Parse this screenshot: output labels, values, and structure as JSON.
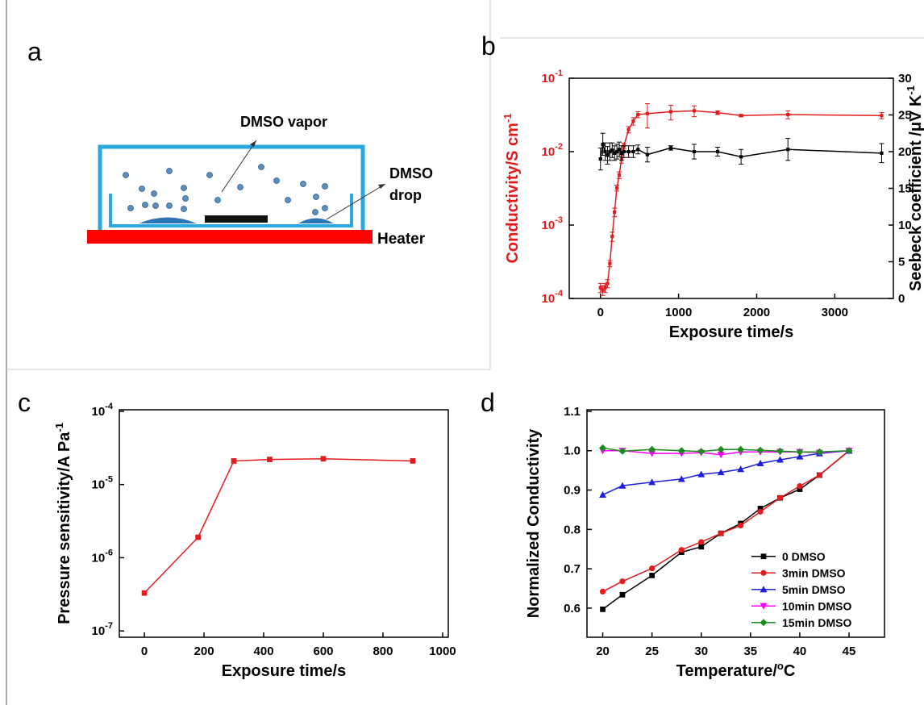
{
  "diagram": {
    "label": "a",
    "vapor": "DMSO vapor",
    "drop": [
      "DMSO",
      "drop"
    ],
    "heater": "Heater"
  },
  "chart_data": [
    {
      "type": "line",
      "label": "b",
      "xlabel": "Exposure time/s",
      "ylabel": {
        "text": "Conductivity/S cm",
        "sup": "-1"
      },
      "y2label": {
        "text": "Seebeck coefficient /μV K",
        "sup": "-1"
      },
      "y_color": "#e41a1c",
      "ylog": true,
      "x": [
        0,
        30,
        60,
        90,
        120,
        150,
        180,
        210,
        240,
        270,
        300,
        360,
        420,
        480,
        600,
        900,
        1200,
        1500,
        1800,
        2400,
        3600
      ],
      "xlim": [
        -400,
        3750
      ],
      "xticks": [
        0,
        1000,
        2000,
        3000
      ],
      "ylim": [
        0.0001,
        0.1
      ],
      "yticks": [
        {
          "value": 0.0001,
          "label": "10",
          "exponent": "-4"
        },
        {
          "value": 0.001,
          "label": "10",
          "exponent": "-3"
        },
        {
          "value": 0.01,
          "label": "10",
          "exponent": "-2"
        },
        {
          "value": 0.1,
          "label": "10",
          "exponent": "-1"
        }
      ],
      "y2lim": [
        0,
        30
      ],
      "y2ticks": [
        0,
        5,
        10,
        15,
        20,
        25,
        30
      ],
      "series": [
        {
          "color": "#e41a1c",
          "marker": "square",
          "values": [
            0.00014,
            0.00013,
            0.00014,
            0.00016,
            0.0003,
            0.0007,
            0.0015,
            0.0032,
            0.0048,
            0.008,
            0.012,
            0.02,
            0.026,
            0.032,
            0.033,
            0.035,
            0.036,
            0.034,
            0.031,
            0.032,
            0.031
          ],
          "errors": [
            2e-05,
            2e-05,
            2e-05,
            2e-05,
            3e-05,
            0.0001,
            0.0002,
            0.0003,
            0.0005,
            0.001,
            0.001,
            0.002,
            0.003,
            0.003,
            0.012,
            0.008,
            0.006,
            0.002,
            0.001,
            0.004,
            0.003
          ]
        },
        {
          "color": "#000000",
          "marker": "square",
          "axis": "y2",
          "values": [
            19,
            21,
            20,
            19.5,
            20,
            20.2,
            19.8,
            20,
            20.3,
            19.8,
            20,
            20,
            20,
            20.3,
            19.6,
            20.5,
            20,
            20,
            19.3,
            20.3,
            19.8
          ],
          "errors": [
            1.5,
            1.5,
            1.2,
            1.2,
            1.2,
            1,
            1,
            1,
            1,
            1,
            0.8,
            0.8,
            0.8,
            0.6,
            1,
            0.3,
            1,
            0.6,
            1,
            1.5,
            1.3
          ]
        }
      ]
    },
    {
      "type": "line",
      "label": "c",
      "xlabel": "Exposure time/s",
      "ylabel": {
        "text": "Pressure sensitivity/A Pa",
        "sup": "-1"
      },
      "ylog": true,
      "x": [
        0,
        180,
        300,
        420,
        600,
        900
      ],
      "xlim": [
        -84,
        1019
      ],
      "xticks": [
        0,
        200,
        400,
        600,
        800,
        1000
      ],
      "ylim": [
        8.2e-08,
        0.000105
      ],
      "yticks": [
        {
          "value": 1e-07,
          "label": "10",
          "exponent": "-7"
        },
        {
          "value": 1e-06,
          "label": "10",
          "exponent": "-6"
        },
        {
          "value": 1e-05,
          "label": "10",
          "exponent": "-5"
        },
        {
          "value": 0.0001,
          "label": "10",
          "exponent": "-4"
        }
      ],
      "series": [
        {
          "color": "#e41a1c",
          "marker": "square",
          "values": [
            3.3e-07,
            1.9e-06,
            2.1e-05,
            2.2e-05,
            2.25e-05,
            2.1e-05
          ]
        }
      ]
    },
    {
      "type": "line",
      "label": "d",
      "xlabel": {
        "text": "Temperature/",
        "sup": "o",
        "tail": "C"
      },
      "ylabel": "Normalized Conductivity",
      "legend": "lower right",
      "x": [
        20,
        22,
        25,
        28,
        30,
        32,
        34,
        36,
        38,
        40,
        42,
        45
      ],
      "xlim": [
        18.4,
        48.6
      ],
      "xticks": [
        20,
        25,
        30,
        35,
        40,
        45
      ],
      "ylim": [
        0.526,
        1.104
      ],
      "yticks": [
        0.6,
        0.7,
        0.8,
        0.9,
        {
          "value": 1,
          "label": "1.0"
        },
        1.1
      ],
      "series": [
        {
          "name": "0 DMSO",
          "color": "#000000",
          "marker": "square",
          "values": [
            0.597,
            0.634,
            0.683,
            0.742,
            0.756,
            0.79,
            0.815,
            0.853,
            0.88,
            0.902,
            0.938,
            1.0
          ]
        },
        {
          "name": "3min DMSO",
          "color": "#e41a1c",
          "marker": "circle",
          "values": [
            0.642,
            0.668,
            0.701,
            0.748,
            0.768,
            0.79,
            0.81,
            0.845,
            0.88,
            0.91,
            0.938,
            1.0
          ]
        },
        {
          "name": "5min DMSO",
          "color": "#1f1fe0",
          "marker": "triangle-up",
          "values": [
            0.888,
            0.911,
            0.92,
            0.928,
            0.94,
            0.945,
            0.953,
            0.968,
            0.977,
            0.985,
            0.993,
            1.0
          ]
        },
        {
          "name": "10min DMSO",
          "color": "#ff00ff",
          "marker": "triangle-down",
          "values": [
            1.0,
            1.0,
            0.993,
            0.993,
            0.995,
            0.99,
            0.997,
            0.997,
            0.997,
            0.997,
            0.995,
            1.0
          ]
        },
        {
          "name": "15min DMSO",
          "color": "#1a8c1a",
          "marker": "diamond",
          "values": [
            1.007,
            0.999,
            1.003,
            1.0,
            0.998,
            1.003,
            1.003,
            1.001,
            0.999,
            0.997,
            0.997,
            1.0
          ]
        }
      ]
    }
  ]
}
